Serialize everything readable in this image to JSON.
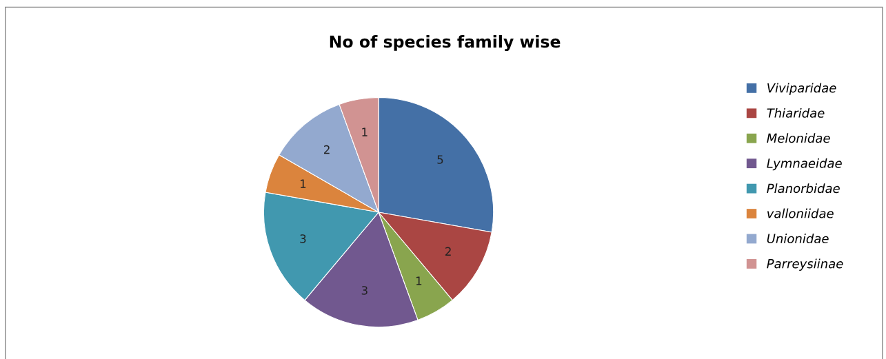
{
  "chart_data": {
    "type": "pie",
    "title": "No of species family wise",
    "categories": [
      "Viviparidae",
      "Thiaridae",
      "Melonidae",
      "Lymnaeidae",
      "Planorbidae",
      "valloniidae",
      "Unionidae",
      "Parreysiinae"
    ],
    "values": [
      5,
      2,
      1,
      3,
      3,
      1,
      2,
      1
    ],
    "colors": [
      "#4470a6",
      "#aa4643",
      "#89a54e",
      "#71588f",
      "#4198af",
      "#db843d",
      "#93a9cf",
      "#d19392"
    ],
    "data_labels": true,
    "legend": "right"
  }
}
